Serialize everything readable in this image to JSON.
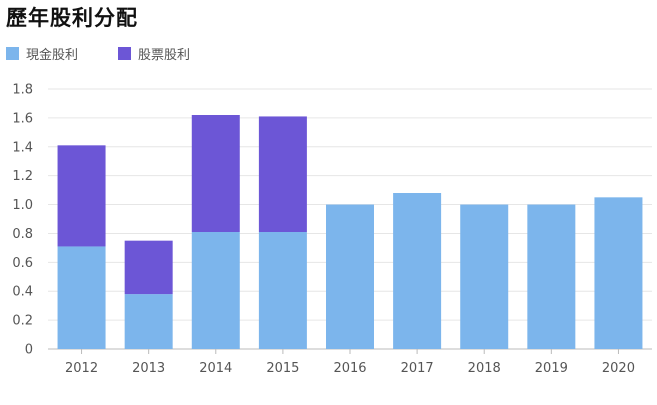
{
  "chart_data": {
    "type": "bar",
    "stacked": true,
    "title": "歷年股利分配",
    "categories": [
      "2012",
      "2013",
      "2014",
      "2015",
      "2016",
      "2017",
      "2018",
      "2019",
      "2020"
    ],
    "series": [
      {
        "name": "現金股利",
        "color": "#7cb5ec",
        "values": [
          0.71,
          0.38,
          0.81,
          0.81,
          1.0,
          1.08,
          1.0,
          1.0,
          1.05
        ]
      },
      {
        "name": "股票股利",
        "color": "#6c56d6",
        "values": [
          0.7,
          0.37,
          0.81,
          0.8,
          0,
          0,
          0,
          0,
          0
        ]
      }
    ],
    "ylim": [
      0,
      1.8
    ],
    "yticks": [
      "0",
      "0.2",
      "0.4",
      "0.6",
      "0.8",
      "1.0",
      "1.2",
      "1.4",
      "1.6",
      "1.8"
    ],
    "grid": true,
    "legend_position": "top-left"
  }
}
